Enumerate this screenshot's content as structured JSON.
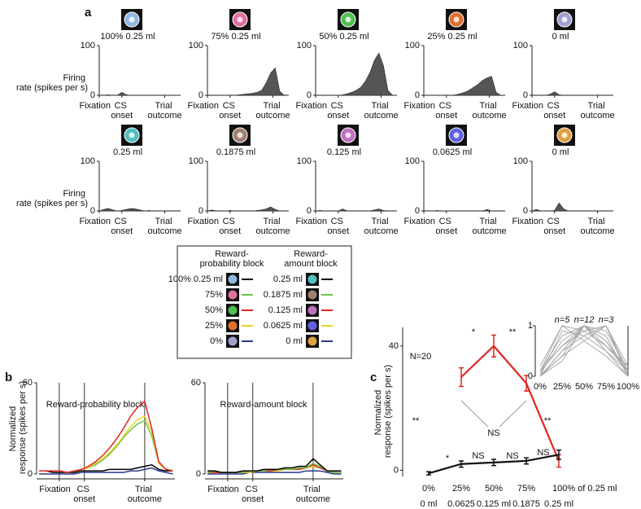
{
  "panel_labels": [
    "a",
    "b",
    "c"
  ],
  "legend_box": {
    "left_title": "Reward-probability block",
    "right_title": "Reward-amount block",
    "left": [
      "100% 0.25 ml",
      "75%",
      "50%",
      "25%",
      "0%"
    ],
    "right": [
      "0.25 ml",
      "0.1875 ml",
      "0.125 ml",
      "0.0625 ml",
      "0 ml"
    ],
    "colors": [
      "#000000",
      "#6cc24a",
      "#e0261f",
      "#e8d820",
      "#2b3a8c"
    ]
  },
  "chart_data": [
    {
      "type": "area",
      "title": "100% 0.25 ml",
      "ylabel": "Firing rate (spikes per s)",
      "color": "#555555",
      "xlim": [
        0,
        3.6
      ],
      "ylim": [
        0,
        100
      ],
      "yticks": [
        0,
        100
      ],
      "xticks": [
        {
          "value": 0,
          "label": "Fixation"
        },
        {
          "value": 1,
          "label": "CS onset"
        },
        {
          "value": 2.9,
          "label": "Trial outcome"
        }
      ],
      "x": [
        0,
        0.2,
        0.4,
        0.6,
        0.8,
        1,
        1.2,
        1.4,
        1.6,
        1.8,
        2,
        2.2,
        2.4,
        2.6,
        2.8,
        3,
        3.2,
        3.4
      ],
      "values": [
        0,
        0,
        1,
        0,
        0,
        6,
        1,
        0,
        0,
        0,
        0,
        0,
        0,
        0,
        0,
        0,
        0,
        0
      ]
    },
    {
      "type": "area",
      "title": "75% 0.25 ml",
      "color": "#555555",
      "xlim": [
        0,
        3.6
      ],
      "ylim": [
        0,
        100
      ],
      "yticks": [
        0,
        100
      ],
      "xticks": [
        {
          "value": 0,
          "label": "Fixation"
        },
        {
          "value": 1,
          "label": "CS onset"
        },
        {
          "value": 2.9,
          "label": "Trial outcome"
        }
      ],
      "x": [
        0,
        0.2,
        0.4,
        0.6,
        0.8,
        1,
        1.2,
        1.4,
        1.6,
        1.8,
        2,
        2.2,
        2.4,
        2.6,
        2.8,
        3,
        3.2,
        3.4
      ],
      "values": [
        0,
        0,
        0,
        0,
        0,
        0,
        0,
        1,
        2,
        3,
        4,
        6,
        10,
        25,
        45,
        55,
        8,
        0
      ]
    },
    {
      "type": "area",
      "title": "50% 0.25 ml",
      "color": "#555555",
      "xlim": [
        0,
        3.6
      ],
      "ylim": [
        0,
        100
      ],
      "yticks": [
        0,
        100
      ],
      "xticks": [
        {
          "value": 0,
          "label": "Fixation"
        },
        {
          "value": 1,
          "label": "CS onset"
        },
        {
          "value": 2.9,
          "label": "Trial outcome"
        }
      ],
      "x": [
        0,
        0.2,
        0.4,
        0.6,
        0.8,
        1,
        1.2,
        1.4,
        1.6,
        1.8,
        2,
        2.2,
        2.4,
        2.6,
        2.8,
        3,
        3.2,
        3.4
      ],
      "values": [
        0,
        0,
        0,
        0,
        0,
        0,
        1,
        3,
        6,
        10,
        16,
        28,
        45,
        70,
        85,
        60,
        10,
        0
      ]
    },
    {
      "type": "area",
      "title": "25% 0.25 ml",
      "color": "#555555",
      "xlim": [
        0,
        3.6
      ],
      "ylim": [
        0,
        100
      ],
      "yticks": [
        0,
        100
      ],
      "xticks": [
        {
          "value": 0,
          "label": "Fixation"
        },
        {
          "value": 1,
          "label": "CS onset"
        },
        {
          "value": 2.9,
          "label": "Trial outcome"
        }
      ],
      "x": [
        0,
        0.2,
        0.4,
        0.6,
        0.8,
        1,
        1.2,
        1.4,
        1.6,
        1.8,
        2,
        2.2,
        2.4,
        2.6,
        2.8,
        3,
        3.2,
        3.4
      ],
      "values": [
        0,
        0,
        0,
        0,
        0,
        0,
        0,
        1,
        3,
        6,
        10,
        16,
        22,
        30,
        35,
        38,
        6,
        0
      ]
    },
    {
      "type": "area",
      "title": "0 ml",
      "color": "#555555",
      "xlim": [
        0,
        3.6
      ],
      "ylim": [
        0,
        100
      ],
      "yticks": [
        0,
        100
      ],
      "xticks": [
        {
          "value": 0,
          "label": "Fixation"
        },
        {
          "value": 1,
          "label": "CS onset"
        },
        {
          "value": 2.9,
          "label": "Trial outcome"
        }
      ],
      "x": [
        0,
        0.2,
        0.4,
        0.6,
        0.8,
        1,
        1.2,
        1.4,
        1.6,
        1.8,
        2,
        2.2,
        2.4,
        2.6,
        2.8,
        3,
        3.2,
        3.4
      ],
      "values": [
        0,
        0,
        0,
        0,
        2,
        7,
        1,
        0,
        0,
        0,
        0,
        0,
        0,
        0,
        0,
        0,
        0,
        0
      ]
    },
    {
      "type": "area",
      "title": "0.25 ml",
      "ylabel": "Firing rate (spikes per s)",
      "color": "#555555",
      "xlim": [
        0,
        3.6
      ],
      "ylim": [
        0,
        100
      ],
      "yticks": [
        0,
        100
      ],
      "xticks": [
        {
          "value": 0,
          "label": "Fixation"
        },
        {
          "value": 1,
          "label": "CS onset"
        },
        {
          "value": 2.9,
          "label": "Trial outcome"
        }
      ],
      "x": [
        0,
        0.2,
        0.4,
        0.6,
        0.8,
        1,
        1.2,
        1.4,
        1.6,
        1.8,
        2,
        2.2,
        2.4,
        2.6,
        2.8,
        3,
        3.2,
        3.4
      ],
      "values": [
        0,
        3,
        5,
        2,
        0,
        1,
        3,
        5,
        4,
        2,
        0,
        1,
        0,
        0,
        0,
        0,
        0,
        0
      ]
    },
    {
      "type": "area",
      "title": "0.1875 ml",
      "color": "#555555",
      "xlim": [
        0,
        3.6
      ],
      "ylim": [
        0,
        100
      ],
      "yticks": [
        0,
        100
      ],
      "xticks": [
        {
          "value": 0,
          "label": "Fixation"
        },
        {
          "value": 1,
          "label": "CS onset"
        },
        {
          "value": 2.9,
          "label": "Trial outcome"
        }
      ],
      "x": [
        0,
        0.2,
        0.4,
        0.6,
        0.8,
        1,
        1.2,
        1.4,
        1.6,
        1.8,
        2,
        2.2,
        2.4,
        2.6,
        2.8,
        3,
        3.2,
        3.4
      ],
      "values": [
        0,
        2,
        0,
        0,
        0,
        1,
        0,
        0,
        0,
        0,
        0,
        1,
        2,
        4,
        8,
        3,
        0,
        0
      ]
    },
    {
      "type": "area",
      "title": "0.125 ml",
      "color": "#555555",
      "xlim": [
        0,
        3.6
      ],
      "ylim": [
        0,
        100
      ],
      "yticks": [
        0,
        100
      ],
      "xticks": [
        {
          "value": 0,
          "label": "Fixation"
        },
        {
          "value": 1,
          "label": "CS onset"
        },
        {
          "value": 2.9,
          "label": "Trial outcome"
        }
      ],
      "x": [
        0,
        0.2,
        0.4,
        0.6,
        0.8,
        1,
        1.2,
        1.4,
        1.6,
        1.8,
        2,
        2.2,
        2.4,
        2.6,
        2.8,
        3,
        3.2,
        3.4
      ],
      "values": [
        0,
        1,
        0,
        0,
        0,
        0,
        4,
        0,
        0,
        0,
        0,
        0,
        0,
        2,
        4,
        1,
        0,
        0
      ]
    },
    {
      "type": "area",
      "title": "0.0625 ml",
      "color": "#555555",
      "xlim": [
        0,
        3.6
      ],
      "ylim": [
        0,
        100
      ],
      "yticks": [
        0,
        100
      ],
      "xticks": [
        {
          "value": 0,
          "label": "Fixation"
        },
        {
          "value": 1,
          "label": "CS onset"
        },
        {
          "value": 2.9,
          "label": "Trial outcome"
        }
      ],
      "x": [
        0,
        0.2,
        0.4,
        0.6,
        0.8,
        1,
        1.2,
        1.4,
        1.6,
        1.8,
        2,
        2.2,
        2.4,
        2.6,
        2.8,
        3,
        3.2,
        3.4
      ],
      "values": [
        0,
        0,
        0,
        1,
        0,
        0,
        0,
        0,
        0,
        0,
        0,
        0,
        0,
        0,
        3,
        0,
        0,
        0
      ]
    },
    {
      "type": "area",
      "title": "0 ml",
      "color": "#555555",
      "xlim": [
        0,
        3.6
      ],
      "ylim": [
        0,
        100
      ],
      "yticks": [
        0,
        100
      ],
      "xticks": [
        {
          "value": 0,
          "label": "Fixation"
        },
        {
          "value": 1,
          "label": "CS onset"
        },
        {
          "value": 2.9,
          "label": "Trial outcome"
        }
      ],
      "x": [
        0,
        0.2,
        0.4,
        0.6,
        0.8,
        1,
        1.2,
        1.4,
        1.6,
        1.8,
        2,
        2.2,
        2.4,
        2.6,
        2.8,
        3,
        3.2,
        3.4
      ],
      "values": [
        0,
        3,
        0,
        0,
        0,
        1,
        16,
        4,
        0,
        0,
        0,
        0,
        0,
        0,
        0,
        0,
        0,
        0
      ]
    },
    {
      "type": "line",
      "title": "Reward-probability block",
      "title_color": "#e0261f",
      "ylabel": "Normalized response (spikes per s)",
      "xlim": [
        -0.9,
        4.6
      ],
      "ylim": [
        0,
        60
      ],
      "yticks": [
        0,
        60
      ],
      "xticks": [
        {
          "value": 0,
          "label": "Fixation"
        },
        {
          "value": 1,
          "label": "CS onset"
        },
        {
          "value": 3.4,
          "label": "Trial outcome"
        }
      ],
      "x": [
        -0.8,
        -0.52,
        -0.24,
        0.04,
        0.32,
        0.6,
        0.88,
        1.16,
        1.44,
        1.72,
        2,
        2.28,
        2.56,
        2.84,
        3.12,
        3.4,
        3.68,
        3.96,
        4.24,
        4.52
      ],
      "series": [
        {
          "color": "#2b3a8c",
          "values": [
            0,
            0,
            0,
            0,
            0,
            0,
            1,
            1,
            1,
            1,
            1,
            1,
            1,
            2,
            2,
            3,
            4,
            2,
            1,
            0
          ]
        },
        {
          "color": "#000000",
          "values": [
            2,
            2,
            1,
            1,
            1,
            1,
            2,
            2,
            2,
            2,
            3,
            3,
            3,
            3,
            4,
            5,
            6,
            3,
            2,
            2
          ]
        },
        {
          "color": "#6cc24a",
          "values": [
            2,
            2,
            2,
            2,
            1,
            2,
            3,
            4,
            6,
            9,
            13,
            18,
            24,
            29,
            33,
            35,
            25,
            7,
            3,
            2
          ]
        },
        {
          "color": "#e8d820",
          "values": [
            2,
            2,
            2,
            2,
            1,
            2,
            3,
            4,
            7,
            10,
            14,
            19,
            25,
            31,
            36,
            38,
            28,
            7,
            3,
            2
          ]
        },
        {
          "color": "#e0261f",
          "values": [
            2,
            2,
            2,
            2,
            1,
            2,
            3,
            5,
            8,
            12,
            17,
            23,
            30,
            38,
            44,
            48,
            30,
            8,
            3,
            2
          ]
        }
      ]
    },
    {
      "type": "line",
      "title": "Reward-amount block",
      "title_color": "#111111",
      "xlim": [
        -0.9,
        4.6
      ],
      "ylim": [
        0,
        60
      ],
      "yticks": [
        0,
        60
      ],
      "xticks": [
        {
          "value": 0,
          "label": "Fixation"
        },
        {
          "value": 1,
          "label": "CS onset"
        },
        {
          "value": 3.4,
          "label": "Trial outcome"
        }
      ],
      "x": [
        -0.8,
        -0.52,
        -0.24,
        0.04,
        0.32,
        0.6,
        0.88,
        1.16,
        1.44,
        1.72,
        2,
        2.28,
        2.56,
        2.84,
        3.12,
        3.4,
        3.68,
        3.96,
        4.24,
        4.52
      ],
      "series": [
        {
          "color": "#2b3a8c",
          "values": [
            0,
            0,
            0,
            0,
            0,
            0,
            1,
            1,
            1,
            1,
            1,
            1,
            1,
            1,
            2,
            2,
            2,
            1,
            0,
            0
          ]
        },
        {
          "color": "#e8d820",
          "values": [
            1,
            1,
            1,
            1,
            1,
            1,
            1,
            2,
            2,
            2,
            2,
            3,
            3,
            3,
            4,
            5,
            4,
            2,
            1,
            1
          ]
        },
        {
          "color": "#e0261f",
          "values": [
            1,
            1,
            1,
            1,
            1,
            1,
            2,
            2,
            2,
            2,
            3,
            3,
            3,
            3,
            4,
            6,
            4,
            2,
            1,
            1
          ]
        },
        {
          "color": "#6cc24a",
          "values": [
            1,
            2,
            1,
            1,
            1,
            1,
            2,
            2,
            2,
            3,
            3,
            3,
            3,
            4,
            4,
            7,
            5,
            2,
            1,
            1
          ]
        },
        {
          "color": "#000000",
          "values": [
            2,
            2,
            1,
            1,
            1,
            2,
            2,
            2,
            3,
            3,
            3,
            4,
            4,
            5,
            5,
            10,
            6,
            2,
            2,
            2
          ]
        }
      ]
    },
    {
      "type": "errorline",
      "ylabel": "Normalized response (spikes per s)",
      "ylim": [
        -2,
        46
      ],
      "yticks": [
        0,
        40
      ],
      "categories": [
        "0%",
        "25%",
        "50%",
        "75%",
        "100% of 0.25 ml"
      ],
      "categories_amount": [
        "0 ml",
        "0.0625",
        "0.125 ml",
        "0.1875",
        "0.25 ml"
      ],
      "categories_color": "#e0261f",
      "annotations": [
        "N=20",
        "**",
        "*",
        "**",
        "**",
        "NS",
        "*",
        "NS",
        "NS",
        "NS"
      ],
      "series": [
        {
          "color": "#e0261f",
          "values": [
            null,
            30,
            40,
            28,
            3
          ],
          "errors": [
            null,
            3,
            3.5,
            2.5,
            2
          ]
        },
        {
          "color": "#111111",
          "values": [
            -1,
            2,
            2.5,
            3,
            5
          ],
          "errors": [
            0.5,
            1,
            1,
            1,
            1.5
          ]
        }
      ]
    },
    {
      "type": "line_cat",
      "ylim": [
        0,
        1
      ],
      "yticks": [
        0,
        1
      ],
      "categories": [
        "0%",
        "25%",
        "50%",
        "75%",
        "100%"
      ],
      "annotations": [
        "n=5",
        "n=12",
        "n=3"
      ],
      "color": "#aaaaaa",
      "series": [
        {
          "values": [
            0.1,
            1,
            0.7,
            0.4,
            0
          ]
        },
        {
          "values": [
            0,
            0.9,
            0.8,
            0.5,
            0.1
          ]
        },
        {
          "values": [
            0.2,
            1,
            0.9,
            0.6,
            0.1
          ]
        },
        {
          "values": [
            0,
            0.4,
            1,
            0.7,
            0.05
          ]
        },
        {
          "values": [
            0.1,
            0.6,
            1,
            0.8,
            0
          ]
        },
        {
          "values": [
            0,
            0.5,
            1,
            0.6,
            0.2
          ]
        },
        {
          "values": [
            0.05,
            0.7,
            1,
            0.9,
            0.1
          ]
        },
        {
          "values": [
            0,
            0.3,
            1,
            0.5,
            0
          ]
        },
        {
          "values": [
            0.1,
            0.8,
            1,
            0.7,
            0.1
          ]
        },
        {
          "values": [
            0,
            0.5,
            0.8,
            1,
            0.1
          ]
        },
        {
          "values": [
            0.1,
            0.6,
            0.9,
            1,
            0
          ]
        },
        {
          "values": [
            0,
            0.4,
            0.7,
            1,
            0.2
          ]
        }
      ]
    }
  ]
}
